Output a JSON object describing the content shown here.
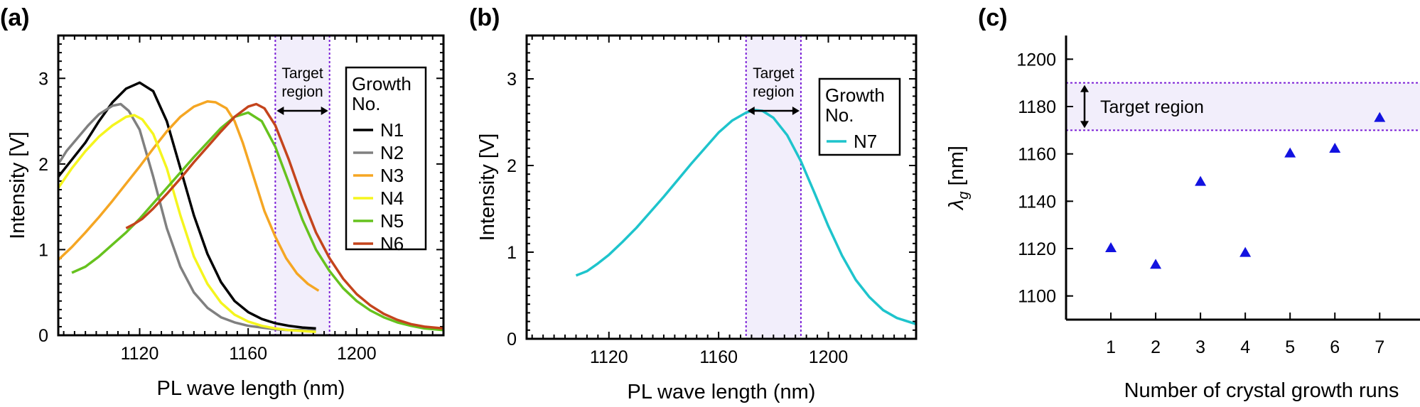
{
  "colors": {
    "N1": "#000000",
    "N2": "#808080",
    "N3": "#f5a623",
    "N4": "#f5f51e",
    "N5": "#66c21e",
    "N6": "#c4441c",
    "N7": "#1ec4cc",
    "region_fill": "#f2eefb",
    "region_border": "#7b1fd6",
    "marker": "#1212e0"
  },
  "chart_data": [
    {
      "panel": "(a)",
      "type": "line",
      "xlabel": "PL wave length (nm)",
      "ylabel": "Intensity [V]",
      "xlim": [
        1090,
        1232
      ],
      "ylim": [
        0,
        3.5
      ],
      "xticks": [
        1120,
        1160,
        1200
      ],
      "yticks": [
        0,
        1,
        2,
        3
      ],
      "target_region": {
        "label_line1": "Target",
        "label_line2": "region",
        "x": [
          1170,
          1190
        ]
      },
      "legend": {
        "title_line1": "Growth",
        "title_line2": "No.",
        "placement": "top-right"
      },
      "series": [
        {
          "name": "N1",
          "x": [
            1090,
            1095,
            1100,
            1105,
            1110,
            1115,
            1120,
            1125,
            1130,
            1135,
            1140,
            1145,
            1150,
            1155,
            1160,
            1165,
            1170,
            1175,
            1180,
            1185
          ],
          "y": [
            1.85,
            2.05,
            2.25,
            2.5,
            2.72,
            2.88,
            2.95,
            2.85,
            2.5,
            1.95,
            1.4,
            0.95,
            0.62,
            0.4,
            0.27,
            0.19,
            0.14,
            0.11,
            0.09,
            0.08
          ]
        },
        {
          "name": "N2",
          "x": [
            1090,
            1093,
            1097,
            1101,
            1105,
            1110,
            1113,
            1116,
            1120,
            1125,
            1130,
            1135,
            1140,
            1145,
            1150,
            1155,
            1160,
            1165,
            1170,
            1175,
            1180,
            1185
          ],
          "y": [
            2.0,
            2.15,
            2.3,
            2.45,
            2.58,
            2.68,
            2.7,
            2.62,
            2.4,
            1.85,
            1.25,
            0.8,
            0.5,
            0.32,
            0.21,
            0.15,
            0.11,
            0.09,
            0.07,
            0.06,
            0.06,
            0.05
          ]
        },
        {
          "name": "N3",
          "x": [
            1090,
            1095,
            1100,
            1105,
            1110,
            1115,
            1120,
            1125,
            1130,
            1135,
            1140,
            1145,
            1148,
            1152,
            1155,
            1158,
            1162,
            1166,
            1170,
            1174,
            1178,
            1182,
            1186
          ],
          "y": [
            0.88,
            1.03,
            1.2,
            1.38,
            1.57,
            1.77,
            1.97,
            2.18,
            2.38,
            2.55,
            2.67,
            2.73,
            2.72,
            2.65,
            2.5,
            2.25,
            1.85,
            1.45,
            1.15,
            0.9,
            0.72,
            0.6,
            0.52
          ]
        },
        {
          "name": "N4",
          "x": [
            1090,
            1095,
            1100,
            1105,
            1110,
            1115,
            1118,
            1121,
            1125,
            1130,
            1135,
            1140,
            1145,
            1150,
            1155,
            1160,
            1165,
            1170,
            1175,
            1180,
            1185
          ],
          "y": [
            1.72,
            1.95,
            2.15,
            2.32,
            2.45,
            2.55,
            2.57,
            2.52,
            2.35,
            1.95,
            1.4,
            0.92,
            0.6,
            0.38,
            0.24,
            0.16,
            0.11,
            0.08,
            0.06,
            0.05,
            0.04
          ]
        },
        {
          "name": "N5",
          "x": [
            1095,
            1100,
            1105,
            1110,
            1115,
            1120,
            1125,
            1130,
            1135,
            1140,
            1145,
            1150,
            1155,
            1160,
            1165,
            1170,
            1175,
            1180,
            1185,
            1190,
            1195,
            1200,
            1205,
            1210,
            1215,
            1220,
            1225,
            1232
          ],
          "y": [
            0.73,
            0.8,
            0.92,
            1.06,
            1.2,
            1.36,
            1.54,
            1.72,
            1.9,
            2.08,
            2.25,
            2.42,
            2.55,
            2.6,
            2.5,
            2.2,
            1.78,
            1.35,
            1.0,
            0.75,
            0.55,
            0.4,
            0.29,
            0.21,
            0.15,
            0.11,
            0.08,
            0.06
          ]
        },
        {
          "name": "N6",
          "x": [
            1115,
            1118,
            1121,
            1125,
            1130,
            1135,
            1140,
            1145,
            1150,
            1155,
            1160,
            1163,
            1166,
            1170,
            1175,
            1180,
            1185,
            1190,
            1195,
            1200,
            1205,
            1210,
            1215,
            1220,
            1225,
            1232
          ],
          "y": [
            1.25,
            1.3,
            1.36,
            1.48,
            1.65,
            1.83,
            2.02,
            2.2,
            2.38,
            2.55,
            2.67,
            2.7,
            2.65,
            2.45,
            2.05,
            1.6,
            1.2,
            0.9,
            0.66,
            0.48,
            0.35,
            0.25,
            0.18,
            0.13,
            0.1,
            0.08
          ]
        }
      ]
    },
    {
      "panel": "(b)",
      "type": "line",
      "xlabel": "PL wave length (nm)",
      "ylabel": "Intensity [V]",
      "xlim": [
        1090,
        1232
      ],
      "ylim": [
        0,
        3.5
      ],
      "xticks": [
        1120,
        1160,
        1200
      ],
      "yticks": [
        0,
        1,
        2,
        3
      ],
      "target_region": {
        "label_line1": "Target",
        "label_line2": "region",
        "x": [
          1170,
          1190
        ]
      },
      "legend": {
        "title_line1": "Growth",
        "title_line2": "No.",
        "placement": "top-right"
      },
      "series": [
        {
          "name": "N7",
          "x": [
            1108,
            1112,
            1116,
            1120,
            1125,
            1130,
            1135,
            1140,
            1145,
            1150,
            1155,
            1160,
            1165,
            1170,
            1173,
            1176,
            1180,
            1185,
            1190,
            1195,
            1200,
            1205,
            1210,
            1215,
            1220,
            1225,
            1232
          ],
          "y": [
            0.73,
            0.78,
            0.87,
            0.97,
            1.12,
            1.28,
            1.46,
            1.64,
            1.83,
            2.02,
            2.2,
            2.38,
            2.52,
            2.61,
            2.64,
            2.63,
            2.55,
            2.35,
            2.05,
            1.68,
            1.3,
            0.96,
            0.68,
            0.48,
            0.33,
            0.24,
            0.17
          ]
        }
      ]
    },
    {
      "panel": "(c)",
      "type": "scatter",
      "xlabel": "Number of crystal growth runs",
      "ylabel_symbol": "λ",
      "ylabel_subscript": "g",
      "ylabel_unit": " [nm]",
      "xlim": [
        0,
        7.9
      ],
      "ylim": [
        1090,
        1210
      ],
      "xticks": [
        1,
        2,
        3,
        4,
        5,
        6,
        7
      ],
      "yticks": [
        1100,
        1120,
        1140,
        1160,
        1180,
        1200
      ],
      "target_region": {
        "label": "Target region",
        "y": [
          1170,
          1190
        ]
      },
      "series": [
        {
          "name": "λg",
          "x": [
            1,
            2,
            3,
            4,
            5,
            6,
            7
          ],
          "y": [
            1120,
            1113,
            1148,
            1118,
            1160,
            1162,
            1175
          ]
        }
      ]
    }
  ]
}
